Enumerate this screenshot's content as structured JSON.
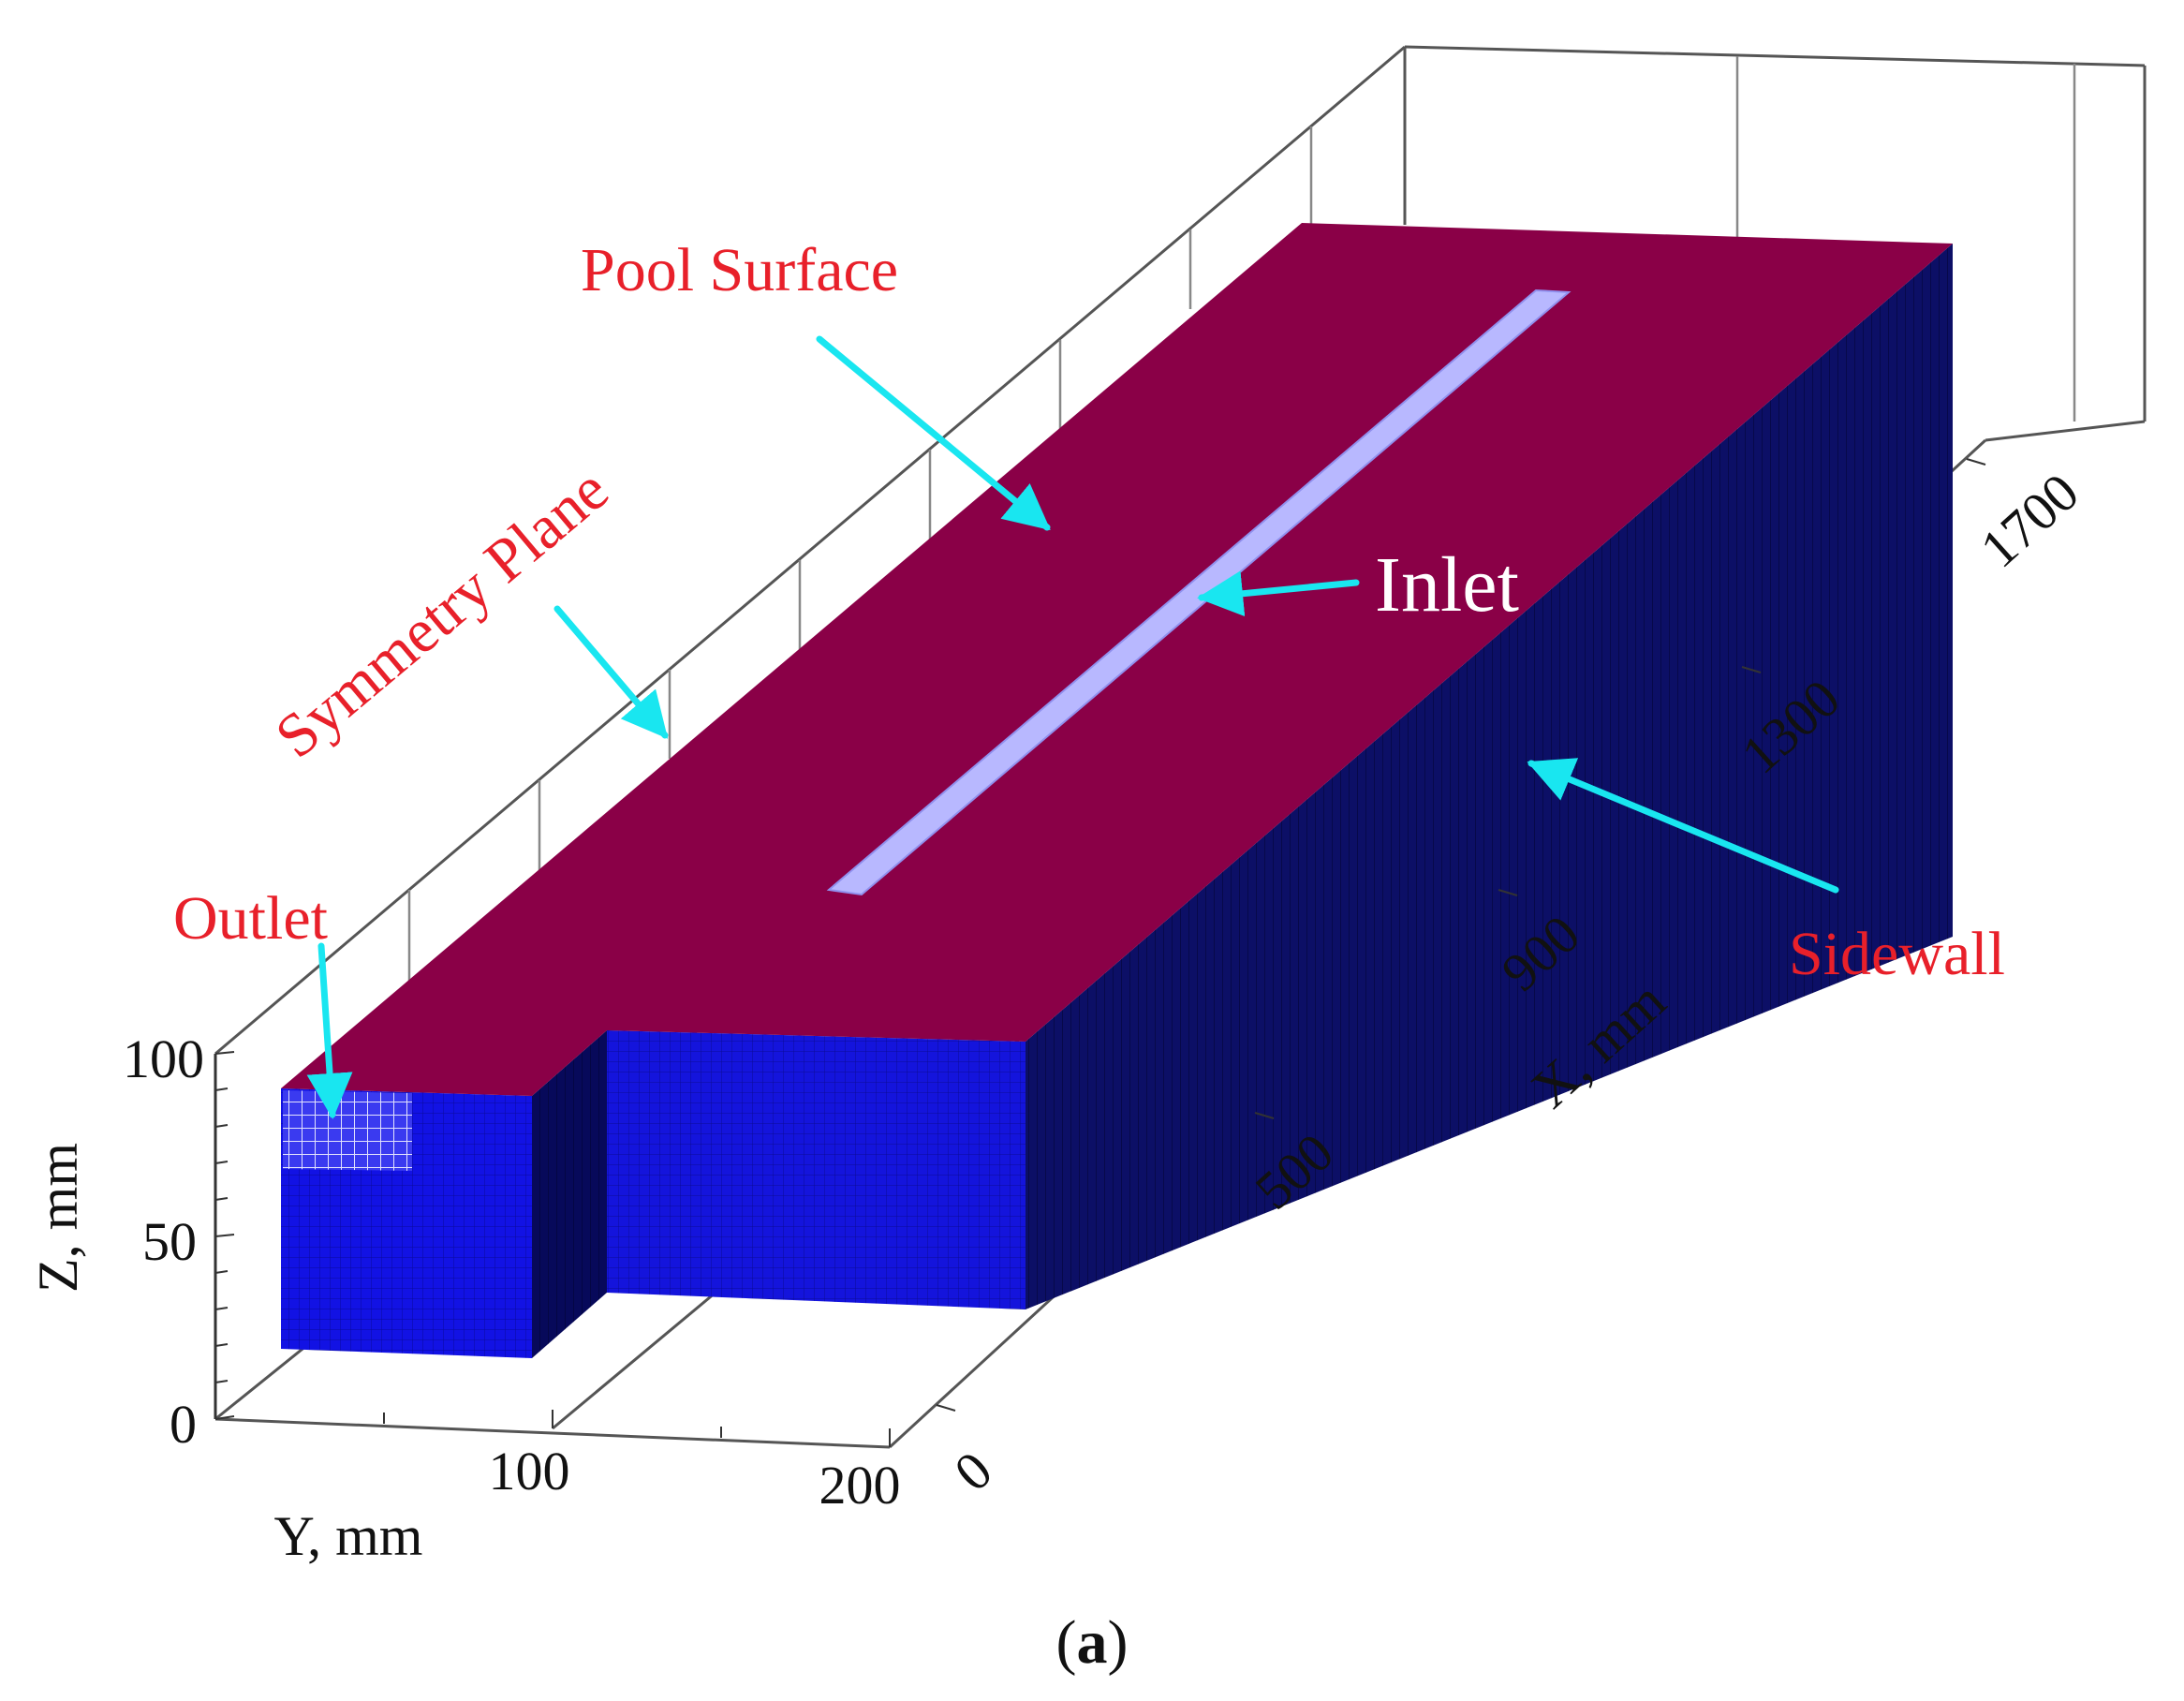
{
  "figure": {
    "caption": {
      "open": "(",
      "letter": "a",
      "close": ")"
    }
  },
  "axes": {
    "z": {
      "title": "Z, mm",
      "ticks": [
        "0",
        "50",
        "100"
      ]
    },
    "y": {
      "title": "Y, mm",
      "ticks": [
        "100",
        "200"
      ]
    },
    "x": {
      "title": "X, mm",
      "ticks": [
        "0",
        "500",
        "900",
        "1300",
        "1700"
      ]
    }
  },
  "labels": {
    "pool_surface": "Pool Surface",
    "symmetry_plane": "Symmetry Plane",
    "inlet": "Inlet",
    "outlet": "Outlet",
    "sidewall": "Sidewall"
  },
  "colors": {
    "surface": "#8a0047",
    "sidewall": "#0c0f66",
    "front": "#1010e6",
    "inlet": "#b8b8ff",
    "arrow": "#19e6f0",
    "label_red": "#e8202a",
    "label_white": "#ffffff",
    "box_line": "#555555"
  }
}
